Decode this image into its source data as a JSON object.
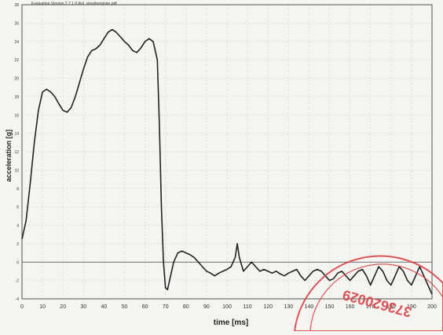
{
  "header": {
    "caption": "Evaluation Version 2.7.1.0 Rel. view/template.pdf"
  },
  "stamp": {
    "text": "373620029"
  },
  "chart_data": {
    "type": "line",
    "title": "",
    "xlabel": "time [ms]",
    "ylabel": "acceleration [g]",
    "xlim": [
      0,
      200
    ],
    "ylim": [
      -4,
      28
    ],
    "x_ticks": [
      0,
      10,
      20,
      30,
      40,
      50,
      60,
      70,
      80,
      90,
      100,
      110,
      120,
      130,
      140,
      150,
      160,
      170,
      180,
      190,
      200
    ],
    "y_ticks": [
      -4,
      -2,
      0,
      2,
      4,
      6,
      8,
      10,
      12,
      14,
      16,
      18,
      20,
      22,
      24,
      26,
      28
    ],
    "y_tick_labels": [
      "-4",
      "-2",
      "0",
      "2",
      "4",
      "6",
      "8",
      "10",
      "12",
      "14",
      "16",
      "18",
      "20",
      "22",
      "24",
      "26",
      "28"
    ],
    "grid": true,
    "series": [
      {
        "name": "",
        "x": [
          0,
          2,
          4,
          6,
          8,
          10,
          12,
          14,
          16,
          18,
          20,
          22,
          24,
          26,
          28,
          30,
          32,
          34,
          36,
          38,
          40,
          42,
          44,
          46,
          48,
          50,
          52,
          54,
          56,
          58,
          60,
          62,
          64,
          66,
          67,
          68,
          69,
          70,
          71,
          72,
          74,
          76,
          78,
          80,
          82,
          84,
          86,
          88,
          90,
          92,
          94,
          96,
          98,
          100,
          102,
          104,
          105,
          106,
          108,
          110,
          112,
          114,
          116,
          118,
          120,
          122,
          124,
          126,
          128,
          130,
          132,
          134,
          136,
          138,
          140,
          142,
          144,
          146,
          148,
          150,
          152,
          154,
          156,
          158,
          160,
          162,
          164,
          166,
          168,
          170,
          172,
          174,
          176,
          178,
          180,
          182,
          184,
          186,
          188,
          190,
          192,
          194,
          196,
          198,
          200
        ],
        "values": [
          2.5,
          4.5,
          8.5,
          13.0,
          16.5,
          18.5,
          18.8,
          18.5,
          18.0,
          17.2,
          16.5,
          16.3,
          16.8,
          18.0,
          19.5,
          21.0,
          22.3,
          23.0,
          23.2,
          23.6,
          24.3,
          25.0,
          25.3,
          25.0,
          24.5,
          24.0,
          23.6,
          23.0,
          22.8,
          23.3,
          24.0,
          24.3,
          24.0,
          22.0,
          15.0,
          6.0,
          0.0,
          -2.8,
          -3.0,
          -2.0,
          0.0,
          1.0,
          1.2,
          1.0,
          0.8,
          0.5,
          0.0,
          -0.5,
          -1.0,
          -1.2,
          -1.5,
          -1.2,
          -1.0,
          -0.8,
          -0.5,
          0.5,
          2.0,
          0.5,
          -1.0,
          -0.5,
          0.0,
          -0.5,
          -1.0,
          -0.8,
          -1.0,
          -1.2,
          -1.0,
          -1.3,
          -1.5,
          -1.2,
          -1.0,
          -0.8,
          -1.5,
          -2.0,
          -1.5,
          -1.0,
          -0.8,
          -1.0,
          -1.5,
          -2.0,
          -1.8,
          -1.2,
          -1.0,
          -1.5,
          -2.0,
          -1.5,
          -1.0,
          -0.8,
          -1.5,
          -2.5,
          -1.5,
          -0.5,
          -1.0,
          -2.0,
          -2.5,
          -1.5,
          -0.5,
          -1.0,
          -2.0,
          -2.5,
          -1.5,
          -0.5,
          -1.5,
          -2.5,
          -3.5
        ]
      }
    ]
  }
}
